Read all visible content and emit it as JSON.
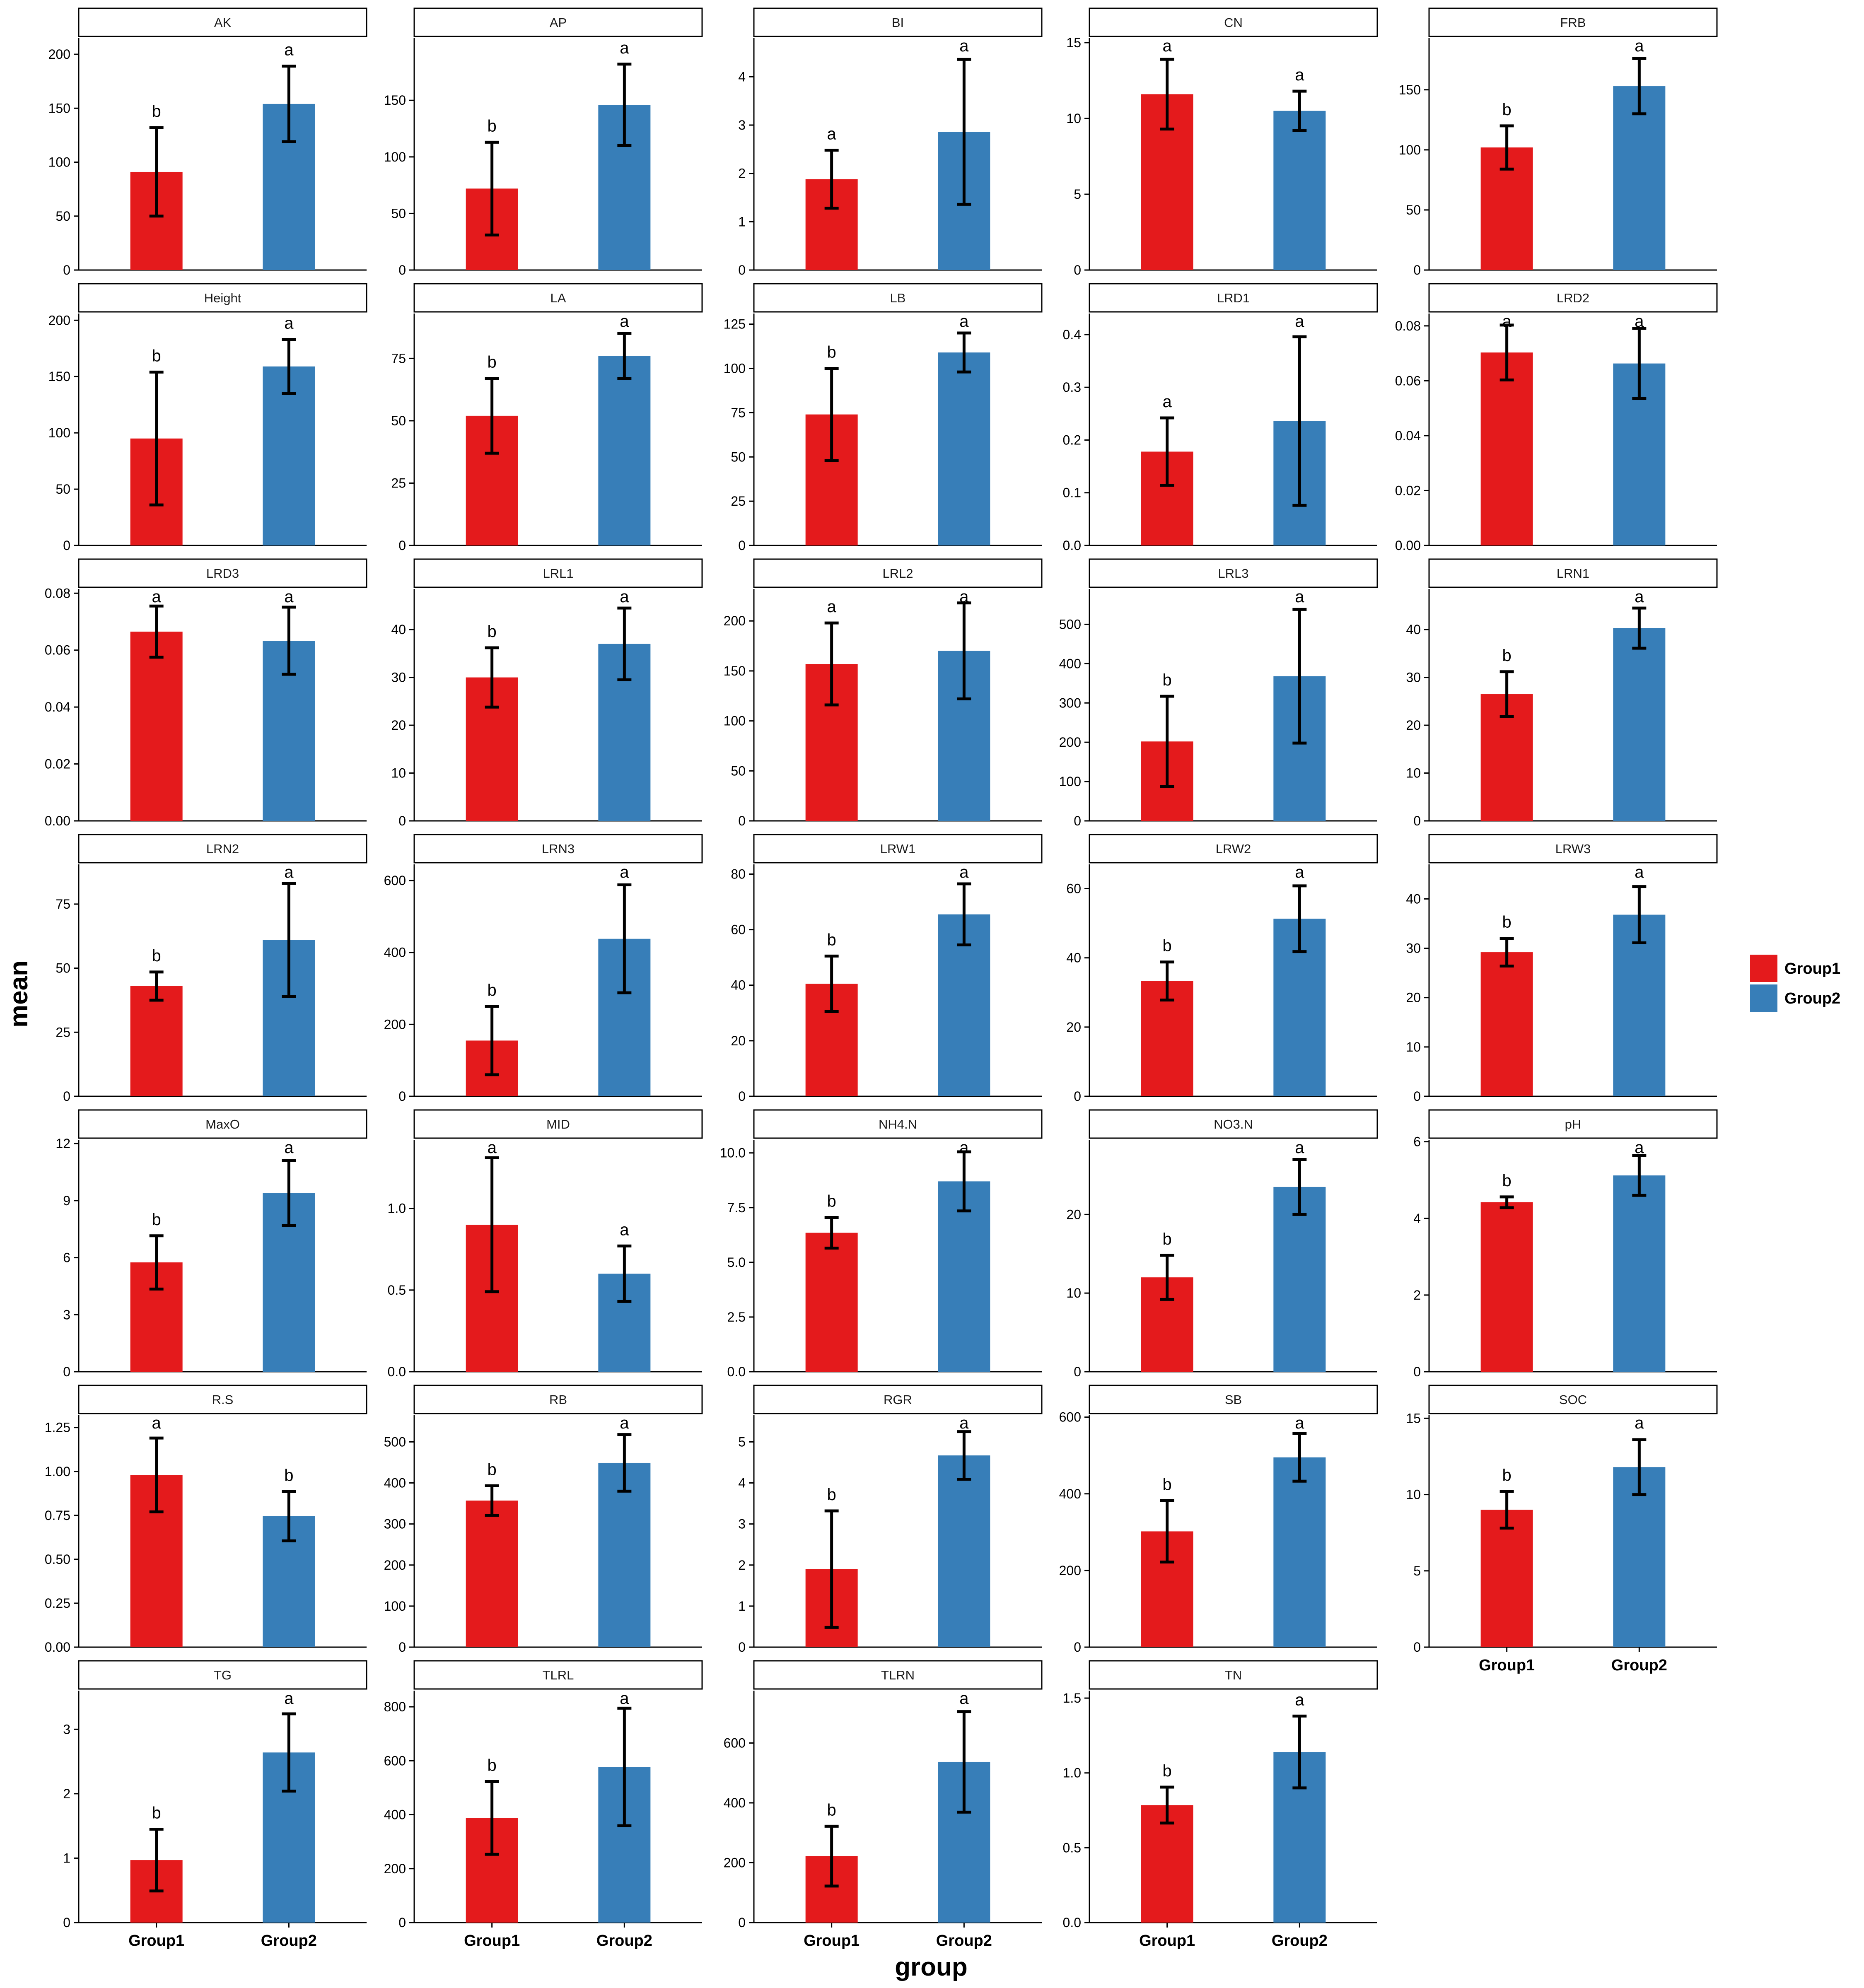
{
  "chart_data": {
    "type": "bar",
    "xlabel": "group",
    "ylabel": "mean",
    "categories": [
      "Group1",
      "Group2"
    ],
    "colors": {
      "Group1": "#e41a1c",
      "Group2": "#377eb8"
    },
    "legend": {
      "position": "right",
      "entries": [
        "Group1",
        "Group2"
      ]
    },
    "panels": [
      {
        "name": "AK",
        "ylim": [
          0,
          215
        ],
        "ticks": [
          0,
          50,
          100,
          150,
          200
        ],
        "values": [
          91,
          154
        ],
        "errors": [
          41,
          35
        ],
        "letters": [
          "b",
          "a"
        ]
      },
      {
        "name": "AP",
        "ylim": [
          0,
          205
        ],
        "ticks": [
          0,
          50,
          100,
          150
        ],
        "values": [
          72,
          146
        ],
        "errors": [
          41,
          36
        ],
        "letters": [
          "b",
          "a"
        ]
      },
      {
        "name": "BI",
        "ylim": [
          0,
          4.8
        ],
        "ticks": [
          0,
          1,
          2,
          3,
          4
        ],
        "values": [
          1.88,
          2.86
        ],
        "errors": [
          0.6,
          1.5
        ],
        "letters": [
          "a",
          "a"
        ]
      },
      {
        "name": "CN",
        "ylim": [
          0,
          15.3
        ],
        "ticks": [
          0,
          5,
          10,
          15
        ],
        "values": [
          11.6,
          10.5
        ],
        "errors": [
          2.3,
          1.3
        ],
        "letters": [
          "a",
          "a"
        ]
      },
      {
        "name": "FRB",
        "ylim": [
          0,
          193
        ],
        "ticks": [
          0,
          50,
          100,
          150
        ],
        "values": [
          102,
          153
        ],
        "errors": [
          18,
          23
        ],
        "letters": [
          "b",
          "a"
        ]
      },
      {
        "name": "Height",
        "ylim": [
          0,
          206
        ],
        "ticks": [
          0,
          50,
          100,
          150,
          200
        ],
        "values": [
          95,
          159
        ],
        "errors": [
          59,
          24
        ],
        "letters": [
          "b",
          "a"
        ]
      },
      {
        "name": "LA",
        "ylim": [
          0,
          93
        ],
        "ticks": [
          0,
          25,
          50,
          75
        ],
        "values": [
          52,
          76
        ],
        "errors": [
          15,
          9
        ],
        "letters": [
          "b",
          "a"
        ]
      },
      {
        "name": "LB",
        "ylim": [
          0,
          131
        ],
        "ticks": [
          0,
          25,
          50,
          75,
          100,
          125
        ],
        "values": [
          74,
          109
        ],
        "errors": [
          26,
          11
        ],
        "letters": [
          "b",
          "a"
        ]
      },
      {
        "name": "LRD1",
        "ylim": [
          0,
          0.44
        ],
        "ticks": [
          0.0,
          0.1,
          0.2,
          0.3,
          0.4
        ],
        "tick_labels": [
          "0.0",
          "0.1",
          "0.2",
          "0.3",
          "0.4"
        ],
        "values": [
          0.178,
          0.236
        ],
        "errors": [
          0.064,
          0.16
        ],
        "letters": [
          "a",
          "a"
        ]
      },
      {
        "name": "LRD2",
        "ylim": [
          0,
          0.0845
        ],
        "ticks": [
          0.0,
          0.02,
          0.04,
          0.06,
          0.08
        ],
        "tick_labels": [
          "0.00",
          "0.02",
          "0.04",
          "0.06",
          "0.08"
        ],
        "values": [
          0.0703,
          0.0663
        ],
        "errors": [
          0.01,
          0.0128
        ],
        "letters": [
          "a",
          "a"
        ]
      },
      {
        "name": "LRD3",
        "ylim": [
          0,
          0.0815
        ],
        "ticks": [
          0.0,
          0.02,
          0.04,
          0.06,
          0.08
        ],
        "tick_labels": [
          "0.00",
          "0.02",
          "0.04",
          "0.06",
          "0.08"
        ],
        "values": [
          0.0665,
          0.0633
        ],
        "errors": [
          0.009,
          0.0118
        ],
        "letters": [
          "a",
          "a"
        ]
      },
      {
        "name": "LRL1",
        "ylim": [
          0,
          48.5
        ],
        "ticks": [
          0,
          10,
          20,
          30,
          40
        ],
        "values": [
          30,
          37
        ],
        "errors": [
          6.2,
          7.5
        ],
        "letters": [
          "b",
          "a"
        ]
      },
      {
        "name": "LRL2",
        "ylim": [
          0,
          232
        ],
        "ticks": [
          0,
          50,
          100,
          150,
          200
        ],
        "values": [
          157,
          170
        ],
        "errors": [
          41,
          48
        ],
        "letters": [
          "a",
          "a"
        ]
      },
      {
        "name": "LRL3",
        "ylim": [
          0,
          590
        ],
        "ticks": [
          0,
          100,
          200,
          300,
          400,
          500
        ],
        "values": [
          202,
          368
        ],
        "errors": [
          115,
          170
        ],
        "letters": [
          "b",
          "a"
        ]
      },
      {
        "name": "LRN1",
        "ylim": [
          0,
          48.5
        ],
        "ticks": [
          0,
          10,
          20,
          30,
          40
        ],
        "values": [
          26.5,
          40.3
        ],
        "errors": [
          4.7,
          4.2
        ],
        "letters": [
          "b",
          "a"
        ]
      },
      {
        "name": "LRN2",
        "ylim": [
          0,
          90.5
        ],
        "ticks": [
          0,
          25,
          50,
          75
        ],
        "values": [
          43,
          61
        ],
        "errors": [
          5.5,
          22
        ],
        "letters": [
          "b",
          "a"
        ]
      },
      {
        "name": "LRN3",
        "ylim": [
          0,
          645
        ],
        "ticks": [
          0,
          200,
          400,
          600
        ],
        "values": [
          155,
          438
        ],
        "errors": [
          95,
          150
        ],
        "letters": [
          "b",
          "a"
        ]
      },
      {
        "name": "LRW1",
        "ylim": [
          0,
          83.5
        ],
        "ticks": [
          0,
          20,
          40,
          60,
          80
        ],
        "values": [
          40.5,
          65.5
        ],
        "errors": [
          10,
          11
        ],
        "letters": [
          "b",
          "a"
        ]
      },
      {
        "name": "LRW2",
        "ylim": [
          0,
          67
        ],
        "ticks": [
          0,
          20,
          40,
          60
        ],
        "values": [
          33.3,
          51.3
        ],
        "errors": [
          5.5,
          9.5
        ],
        "letters": [
          "b",
          "a"
        ]
      },
      {
        "name": "LRW3",
        "ylim": [
          0,
          47
        ],
        "ticks": [
          0,
          10,
          20,
          30,
          40
        ],
        "values": [
          29.2,
          36.8
        ],
        "errors": [
          2.8,
          5.7
        ],
        "letters": [
          "b",
          "a"
        ]
      },
      {
        "name": "MaxO",
        "ylim": [
          0,
          12.2
        ],
        "ticks": [
          0,
          3,
          6,
          9,
          12
        ],
        "values": [
          5.75,
          9.4
        ],
        "errors": [
          1.4,
          1.7
        ],
        "letters": [
          "b",
          "a"
        ]
      },
      {
        "name": "MID",
        "ylim": [
          0,
          1.42
        ],
        "ticks": [
          0.0,
          0.5,
          1.0
        ],
        "tick_labels": [
          "0.0",
          "0.5",
          "1.0"
        ],
        "values": [
          0.9,
          0.6
        ],
        "errors": [
          0.41,
          0.17
        ],
        "letters": [
          "a",
          "a"
        ]
      },
      {
        "name": "NH4.N",
        "ylim": [
          0,
          10.6
        ],
        "ticks": [
          0,
          2.5,
          5,
          7.5,
          10
        ],
        "tick_labels": [
          "0.0",
          "2.5",
          "5.0",
          "7.5",
          "10.0"
        ],
        "values": [
          6.35,
          8.7
        ],
        "errors": [
          0.7,
          1.35
        ],
        "letters": [
          "b",
          "a"
        ]
      },
      {
        "name": "NO3.N",
        "ylim": [
          0,
          29.5
        ],
        "ticks": [
          0,
          10,
          20
        ],
        "values": [
          12,
          23.5
        ],
        "errors": [
          2.8,
          3.5
        ],
        "letters": [
          "b",
          "a"
        ]
      },
      {
        "name": "pH",
        "ylim": [
          0,
          6.05
        ],
        "ticks": [
          0,
          2,
          4,
          6
        ],
        "values": [
          4.42,
          5.12
        ],
        "errors": [
          0.14,
          0.52
        ],
        "letters": [
          "b",
          "a"
        ]
      },
      {
        "name": "R.S",
        "ylim": [
          0,
          1.32
        ],
        "ticks": [
          0,
          0.25,
          0.5,
          0.75,
          1.0,
          1.25
        ],
        "tick_labels": [
          "0.00",
          "0.25",
          "0.50",
          "0.75",
          "1.00",
          "1.25"
        ],
        "values": [
          0.98,
          0.745
        ],
        "errors": [
          0.21,
          0.14
        ],
        "letters": [
          "a",
          "b"
        ]
      },
      {
        "name": "RB",
        "ylim": [
          0,
          565
        ],
        "ticks": [
          0,
          100,
          200,
          300,
          400,
          500
        ],
        "values": [
          357,
          449
        ],
        "errors": [
          36,
          69
        ],
        "letters": [
          "b",
          "a"
        ]
      },
      {
        "name": "RGR",
        "ylim": [
          0,
          5.65
        ],
        "ticks": [
          0,
          1,
          2,
          3,
          4,
          5
        ],
        "values": [
          1.9,
          4.67
        ],
        "errors": [
          1.42,
          0.58
        ],
        "letters": [
          "b",
          "a"
        ]
      },
      {
        "name": "SB",
        "ylim": [
          0,
          605
        ],
        "ticks": [
          0,
          200,
          400,
          600
        ],
        "values": [
          302,
          495
        ],
        "errors": [
          80,
          62
        ],
        "letters": [
          "b",
          "a"
        ]
      },
      {
        "name": "SOC",
        "ylim": [
          0,
          15.2
        ],
        "ticks": [
          0,
          5,
          10,
          15
        ],
        "values": [
          9,
          11.8
        ],
        "errors": [
          1.2,
          1.8
        ],
        "letters": [
          "b",
          "a"
        ]
      },
      {
        "name": "TG",
        "ylim": [
          0,
          3.6
        ],
        "ticks": [
          0,
          1,
          2,
          3
        ],
        "values": [
          0.97,
          2.64
        ],
        "errors": [
          0.48,
          0.6
        ],
        "letters": [
          "b",
          "a"
        ]
      },
      {
        "name": "TLRL",
        "ylim": [
          0,
          860
        ],
        "ticks": [
          0,
          200,
          400,
          600,
          800
        ],
        "values": [
          388,
          577
        ],
        "errors": [
          135,
          218
        ],
        "letters": [
          "b",
          "a"
        ]
      },
      {
        "name": "TLRN",
        "ylim": [
          0,
          775
        ],
        "ticks": [
          0,
          200,
          400,
          600
        ],
        "values": [
          222,
          537
        ],
        "errors": [
          100,
          168
        ],
        "letters": [
          "b",
          "a"
        ]
      },
      {
        "name": "TN",
        "ylim": [
          0,
          1.55
        ],
        "ticks": [
          0.0,
          0.5,
          1.0,
          1.5
        ],
        "tick_labels": [
          "0.0",
          "0.5",
          "1.0",
          "1.5"
        ],
        "values": [
          0.785,
          1.14
        ],
        "errors": [
          0.12,
          0.24
        ],
        "letters": [
          "b",
          "a"
        ]
      }
    ]
  }
}
